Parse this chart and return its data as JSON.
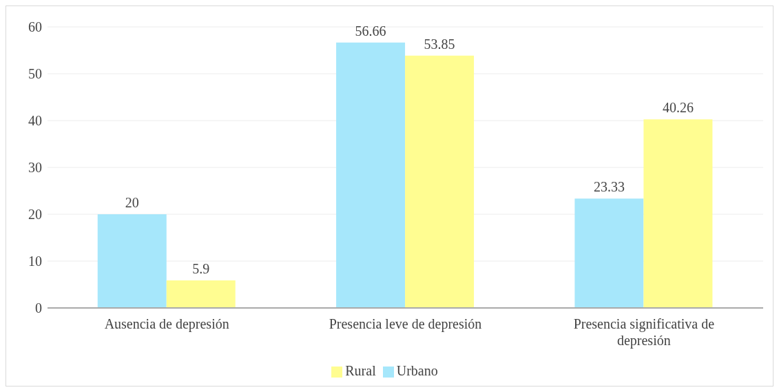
{
  "chart_data": {
    "type": "bar",
    "categories": [
      "Ausencia de depresión",
      "Presencia leve de depresión",
      "Presencia significativa de depresión"
    ],
    "series": [
      {
        "name": "Urbano",
        "color": "#a6e7fb",
        "values": [
          20,
          56.66,
          23.33
        ]
      },
      {
        "name": "Rural",
        "color": "#fffd91",
        "values": [
          5.9,
          53.85,
          40.26
        ]
      }
    ],
    "ylim": [
      0,
      60
    ],
    "yticks": [
      0,
      10,
      20,
      30,
      40,
      50,
      60
    ],
    "grid": "y",
    "legend": "bottom",
    "data_labels": true
  }
}
